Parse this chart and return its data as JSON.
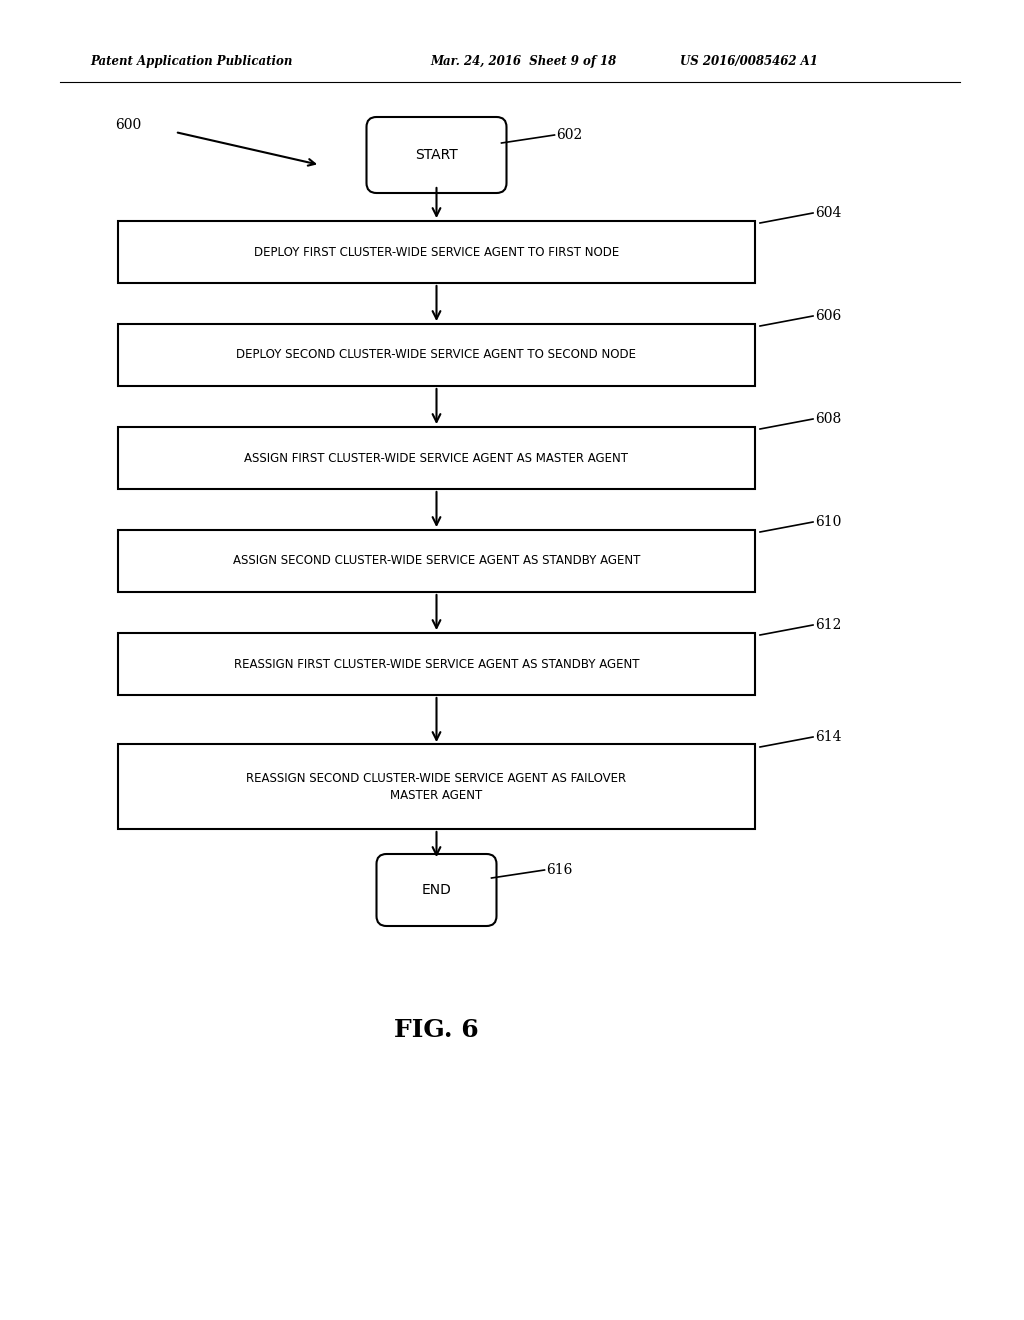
{
  "header_left": "Patent Application Publication",
  "header_mid": "Mar. 24, 2016  Sheet 9 of 18",
  "header_right": "US 2016/0085462 A1",
  "fig_label": "FIG. 6",
  "fig_num_label": "600",
  "start_label": "602",
  "end_label": "616",
  "boxes": [
    {
      "label": "604",
      "text": "DEPLOY FIRST CLUSTER-WIDE SERVICE AGENT TO FIRST NODE"
    },
    {
      "label": "606",
      "text": "DEPLOY SECOND CLUSTER-WIDE SERVICE AGENT TO SECOND NODE"
    },
    {
      "label": "608",
      "text": "ASSIGN FIRST CLUSTER-WIDE SERVICE AGENT AS MASTER AGENT"
    },
    {
      "label": "610",
      "text": "ASSIGN SECOND CLUSTER-WIDE SERVICE AGENT AS STANDBY AGENT"
    },
    {
      "label": "612",
      "text": "REASSIGN FIRST CLUSTER-WIDE SERVICE AGENT AS STANDBY AGENT"
    },
    {
      "label": "614",
      "text": "REASSIGN SECOND CLUSTER-WIDE SERVICE AGENT AS FAILOVER\nMASTER AGENT"
    }
  ],
  "bg_color": "#ffffff",
  "text_color": "#000000",
  "box_edge_color": "#000000",
  "arrow_color": "#000000"
}
